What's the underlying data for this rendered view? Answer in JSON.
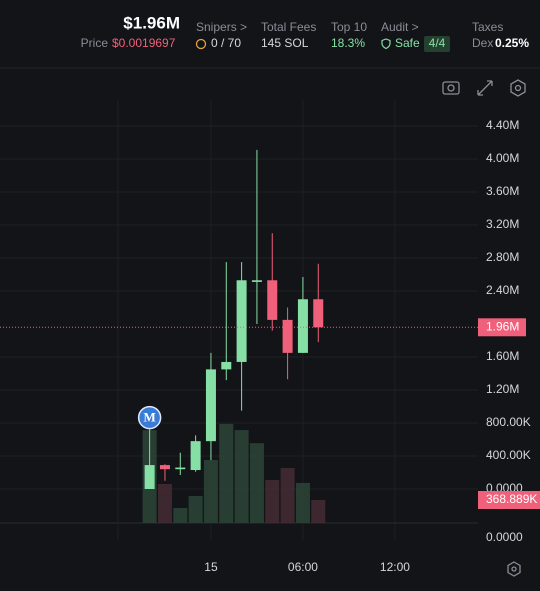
{
  "header": {
    "market_cap": "$1.96M",
    "price_label": "Price",
    "price": "$0.0019697",
    "snipers_label": "Snipers >",
    "snipers": "0 / 70",
    "fees_label": "Total Fees",
    "fees": "145 SOL",
    "top10_label": "Top 10",
    "top10": "18.3%",
    "audit_label": "Audit >",
    "audit": "Safe",
    "audit_score": "4/4",
    "taxes_label": "Taxes",
    "taxes_type": "Dex",
    "taxes": "0.25%"
  },
  "chart_data": {
    "type": "candlestick",
    "up_color": "#86e0a5",
    "down_color": "#f0607a",
    "x": [
      -4,
      -3,
      -2,
      -1,
      0,
      1,
      2,
      3,
      4,
      5,
      6,
      7
    ],
    "open": [
      0,
      290000,
      240000,
      230000,
      580000,
      1450000,
      1540000,
      2510000,
      2530000,
      2050000,
      1650000,
      2300000
    ],
    "high": [
      720000,
      300000,
      440000,
      650000,
      1650000,
      2750000,
      2750000,
      4110000,
      3100000,
      2200000,
      2570000,
      2730000
    ],
    "low": [
      0,
      100000,
      170000,
      210000,
      350000,
      1320000,
      950000,
      2000000,
      1920000,
      1330000,
      1650000,
      1780000
    ],
    "close": [
      290000,
      240000,
      260000,
      580000,
      1450000,
      1540000,
      2530000,
      2530000,
      2050000,
      1650000,
      2300000,
      1960000
    ],
    "xlim": [
      -13.76,
      17.42
    ],
    "xticks": [
      {
        "value": 0,
        "label": "15"
      },
      {
        "value": 6,
        "label": "06:00"
      },
      {
        "value": 12,
        "label": "12:00"
      }
    ],
    "ylim": [
      -412000,
      4715000
    ],
    "yticks": [
      {
        "value": 0,
        "label": "0.0000"
      },
      {
        "value": 400000,
        "label": "400.00K"
      },
      {
        "value": 800000,
        "label": "800.00K"
      },
      {
        "value": 1200000,
        "label": "1.20M"
      },
      {
        "value": 1600000,
        "label": "1.60M"
      },
      {
        "value": 2400000,
        "label": "2.40M"
      },
      {
        "value": 2800000,
        "label": "2.80M"
      },
      {
        "value": 3200000,
        "label": "3.20M"
      },
      {
        "value": 3600000,
        "label": "3.60M"
      },
      {
        "value": 4000000,
        "label": "4.00M"
      },
      {
        "value": 4400000,
        "label": "4.40M"
      }
    ],
    "last_price": {
      "value": 1960000,
      "label": "1.96M"
    },
    "volume": {
      "values": [
        1490000,
        626000,
        241000,
        433000,
        1010000,
        1590000,
        1490000,
        1280000,
        690000,
        882000,
        642000,
        368889
      ],
      "value_label": "368.889K",
      "ylim": [
        0,
        6785000
      ],
      "axis_label": "0.0000"
    },
    "marker": {
      "label": "M",
      "index": 0
    }
  }
}
